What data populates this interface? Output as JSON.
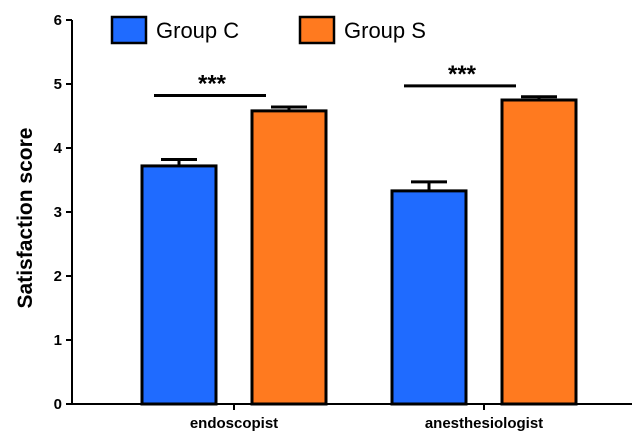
{
  "chart_data": {
    "type": "bar",
    "title": "",
    "xlabel": "",
    "ylabel": "Satisfaction score",
    "ylim": [
      0,
      6
    ],
    "yticks": [
      "0",
      "1",
      "2",
      "3",
      "4",
      "5",
      "6"
    ],
    "categories": [
      "endoscopist",
      "anesthesiologist"
    ],
    "series": [
      {
        "name": "Group C",
        "color": "#1f6bff",
        "values": [
          3.72,
          3.33
        ],
        "errors": [
          0.1,
          0.14
        ]
      },
      {
        "name": "Group S",
        "color": "#ff7a1f",
        "values": [
          4.58,
          4.75
        ],
        "errors": [
          0.06,
          0.05
        ]
      }
    ],
    "significance": [
      {
        "category": "endoscopist",
        "label": "***",
        "level": 4.82
      },
      {
        "category": "anesthesiologist",
        "label": "***",
        "level": 4.97
      }
    ],
    "grid": false,
    "legend_position": "top"
  }
}
